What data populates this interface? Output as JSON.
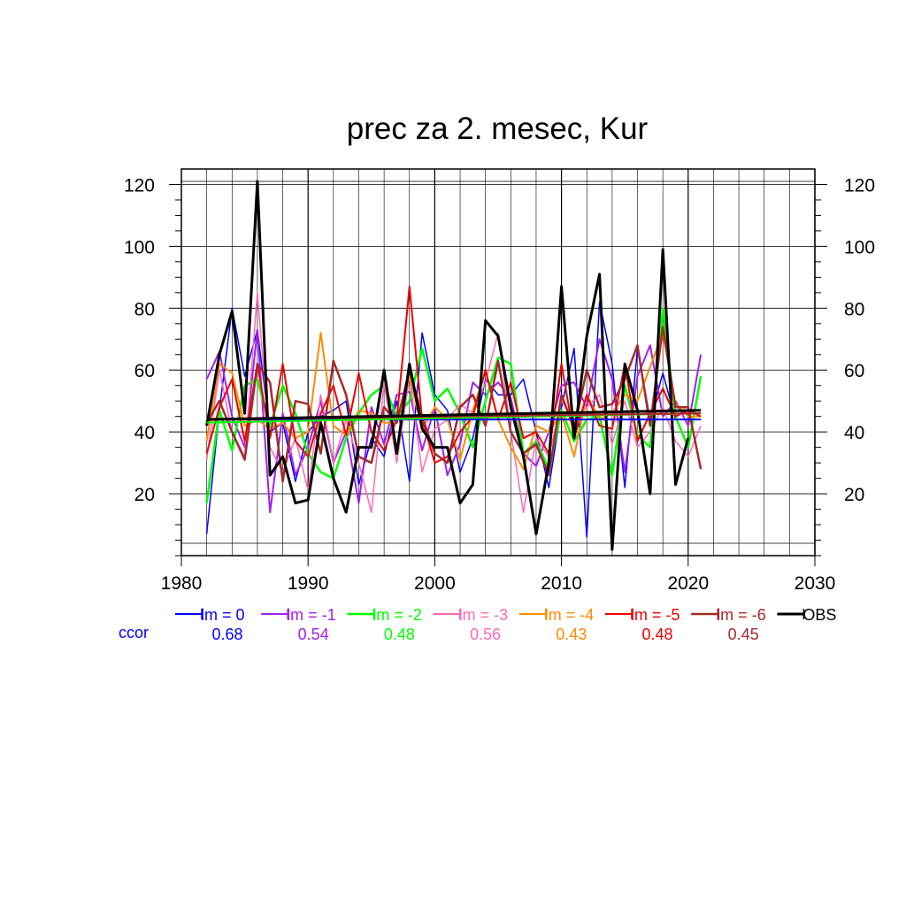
{
  "chart_data": {
    "type": "line",
    "title": "prec za 2. mesec, Kur",
    "xlabel": "",
    "ylabel": "",
    "xlim": [
      1980,
      2030
    ],
    "ylim": [
      0,
      125
    ],
    "x_ticks": [
      1980,
      1990,
      2000,
      2010,
      2020,
      2030
    ],
    "y_ticks": [
      20,
      40,
      60,
      80,
      100,
      120
    ],
    "grid": true,
    "x": [
      1982,
      1983,
      1984,
      1985,
      1986,
      1987,
      1988,
      1989,
      1990,
      1991,
      1992,
      1993,
      1994,
      1995,
      1996,
      1997,
      1998,
      1999,
      2000,
      2001,
      2002,
      2003,
      2004,
      2005,
      2006,
      2007,
      2008,
      2009,
      2010,
      2011,
      2012,
      2013,
      2014,
      2015,
      2016,
      2017,
      2018,
      2019,
      2020,
      2021
    ],
    "ccor_label": "ccor",
    "series": [
      {
        "name": "lm = 0",
        "color": "#0000ff",
        "width": 1.5,
        "ccor": "0.68",
        "values": [
          7,
          47,
          80,
          58,
          73,
          40,
          43,
          24,
          40,
          45,
          47,
          50,
          23,
          38,
          32,
          50,
          24,
          72,
          52,
          47,
          27,
          38,
          57,
          52,
          52,
          57,
          40,
          22,
          48,
          67,
          6,
          82,
          62,
          22,
          67,
          44,
          59,
          44,
          44,
          44
        ],
        "trend": [
          44,
          44
        ]
      },
      {
        "name": "lm = -1",
        "color": "#a020f0",
        "width": 2,
        "ccor": "0.54",
        "values": [
          57,
          66,
          45,
          35,
          73,
          14,
          46,
          26,
          35,
          50,
          30,
          40,
          17,
          48,
          36,
          52,
          53,
          34,
          48,
          26,
          36,
          56,
          52,
          56,
          51,
          33,
          29,
          40,
          55,
          56,
          48,
          70,
          57,
          27,
          58,
          68,
          45,
          50,
          42,
          65
        ],
        "trend": [
          44,
          46
        ]
      },
      {
        "name": "lm = -2",
        "color": "#00ff00",
        "width": 2.5,
        "ccor": "0.48",
        "values": [
          17,
          47,
          34,
          55,
          57,
          42,
          55,
          46,
          33,
          27,
          25,
          38,
          46,
          52,
          55,
          45,
          50,
          67,
          50,
          54,
          46,
          35,
          50,
          64,
          62,
          33,
          37,
          28,
          47,
          37,
          44,
          45,
          26,
          55,
          39,
          35,
          80,
          45,
          35,
          58
        ],
        "trend": [
          43,
          46
        ]
      },
      {
        "name": "lm = -3",
        "color": "#ff69b4",
        "width": 1.5,
        "ccor": "0.56",
        "values": [
          31,
          60,
          40,
          32,
          85,
          35,
          27,
          38,
          21,
          52,
          30,
          44,
          30,
          14,
          56,
          30,
          58,
          27,
          41,
          44,
          49,
          46,
          56,
          72,
          40,
          14,
          38,
          32,
          50,
          44,
          48,
          52,
          36,
          50,
          35,
          40,
          48,
          37,
          32,
          42
        ],
        "trend": [
          44,
          46
        ]
      },
      {
        "name": "lm = -4",
        "color": "#ff8c00",
        "width": 2,
        "ccor": "0.43",
        "values": [
          37,
          62,
          59,
          42,
          44,
          41,
          43,
          38,
          40,
          72,
          42,
          39,
          47,
          46,
          43,
          43,
          58,
          41,
          48,
          44,
          31,
          47,
          60,
          44,
          35,
          28,
          42,
          40,
          46,
          32,
          52,
          44,
          46,
          52,
          50,
          61,
          72,
          49,
          45,
          45
        ],
        "trend": [
          44,
          46
        ]
      },
      {
        "name": "lm = -5",
        "color": "#ee0000",
        "width": 2,
        "ccor": "0.48",
        "values": [
          33,
          48,
          57,
          37,
          62,
          38,
          62,
          37,
          32,
          46,
          55,
          39,
          59,
          40,
          34,
          44,
          87,
          44,
          30,
          32,
          40,
          45,
          60,
          44,
          56,
          38,
          40,
          33,
          62,
          38,
          52,
          42,
          41,
          62,
          37,
          46,
          54,
          45,
          47,
          45
        ],
        "trend": [
          44,
          46
        ]
      },
      {
        "name": "lm = -6",
        "color": "#a52a2a",
        "width": 2.5,
        "ccor": "0.45",
        "values": [
          43,
          50,
          40,
          31,
          62,
          56,
          24,
          50,
          49,
          33,
          63,
          52,
          32,
          30,
          48,
          43,
          60,
          45,
          33,
          30,
          48,
          52,
          42,
          63,
          40,
          33,
          36,
          26,
          52,
          41,
          60,
          48,
          49,
          57,
          68,
          42,
          74,
          48,
          48,
          28
        ],
        "trend": [
          44,
          46
        ]
      },
      {
        "name": "OBS",
        "color": "#000000",
        "width": 3,
        "ccor": "",
        "values": [
          42,
          65,
          79,
          46,
          121,
          26,
          32,
          17,
          18,
          43,
          25,
          14,
          35,
          35,
          60,
          33,
          62,
          41,
          35,
          35,
          17,
          23,
          76,
          71,
          48,
          32,
          7,
          30,
          87,
          38,
          71,
          91,
          2,
          62,
          47,
          20,
          99,
          23,
          38,
          null
        ],
        "trend": [
          44,
          47
        ]
      }
    ]
  }
}
